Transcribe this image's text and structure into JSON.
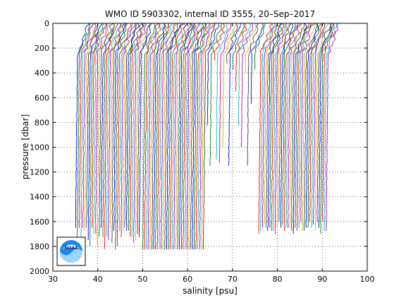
{
  "chart_data": {
    "type": "line",
    "title": "WMO ID 5903302, internal ID 3555, 20–Sep–2017",
    "xlabel": "salinity [psu]",
    "ylabel": "pressure [dbar]",
    "xlim": [
      30,
      100
    ],
    "ylim": [
      2000,
      0
    ],
    "y_reversed": true,
    "grid": "dotted",
    "xticks": [
      "30",
      "40",
      "50",
      "60",
      "70",
      "80",
      "90",
      "100"
    ],
    "yticks": [
      "0",
      "200",
      "400",
      "600",
      "800",
      "1000",
      "1200",
      "1400",
      "1600",
      "1800",
      "2000"
    ],
    "series_note": "profiles offset successively in salinity",
    "profile_groups": [
      {
        "start": 34.7,
        "end": 48.9,
        "count": 36,
        "max_pressure": [
          1650,
          1840
        ]
      },
      {
        "start": 49.7,
        "end": 63.2,
        "count": 34,
        "max_pressure": [
          1840,
          1840
        ]
      },
      {
        "start": 63.8,
        "end": 74.2,
        "count": 16,
        "max_pressure": [
          200,
          1200
        ]
      },
      {
        "start": 75.5,
        "end": 90.5,
        "count": 38,
        "max_pressure": [
          1600,
          1720
        ]
      }
    ],
    "profile_colors": [
      "#0000ff",
      "#008000",
      "#ff0000",
      "#00bfbf",
      "#bf00bf",
      "#bfbf00",
      "#404040"
    ]
  },
  "logo": {
    "text": "NOAA"
  }
}
